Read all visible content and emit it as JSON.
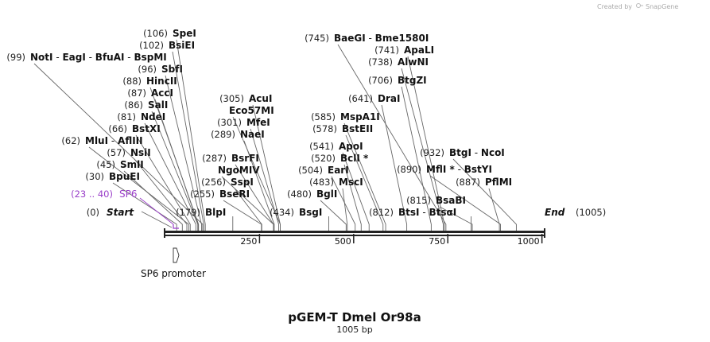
{
  "credit": {
    "text": "Created by",
    "brand": "SnapGene"
  },
  "title": "pGEM-T Dmel Or98a",
  "length_label": "1005 bp",
  "map": {
    "length": 1005,
    "start": {
      "pos": "(0)",
      "label": "Start"
    },
    "end": {
      "label": "End",
      "pos": "(1005)"
    },
    "ticks": [
      {
        "value": 250,
        "label": "250"
      },
      {
        "value": 500,
        "label": "500"
      },
      {
        "value": 750,
        "label": "750"
      },
      {
        "value": 1000,
        "label": "1000"
      }
    ]
  },
  "feature": {
    "range": "(23 .. 40)",
    "name": "SP6",
    "start": 23,
    "end": 40,
    "color": "#9a3fc9"
  },
  "promoter": {
    "name": "SP6 promoter",
    "start": 23,
    "end": 40
  },
  "colors": {
    "feature": "#9a3fc9",
    "text": "#111111",
    "line": "#666666"
  },
  "sites": [
    {
      "pos": "(106)",
      "names": [
        "SpeI"
      ],
      "bp": 106
    },
    {
      "pos": "(102)",
      "names": [
        "BsiEI"
      ],
      "bp": 102
    },
    {
      "pos": "(99)",
      "names": [
        "NotI",
        "EagI",
        "BfuAI",
        "BspMI"
      ],
      "bp": 99
    },
    {
      "pos": "(96)",
      "names": [
        "SbfI"
      ],
      "bp": 96
    },
    {
      "pos": "(88)",
      "names": [
        "HincII"
      ],
      "bp": 88
    },
    {
      "pos": "(87)",
      "names": [
        "AccI"
      ],
      "bp": 87
    },
    {
      "pos": "(86)",
      "names": [
        "SalI"
      ],
      "bp": 86
    },
    {
      "pos": "(81)",
      "names": [
        "NdeI"
      ],
      "bp": 81
    },
    {
      "pos": "(66)",
      "names": [
        "BstXI"
      ],
      "bp": 66
    },
    {
      "pos": "(62)",
      "names": [
        "MluI",
        "AflIII"
      ],
      "bp": 62
    },
    {
      "pos": "(57)",
      "names": [
        "NsiI"
      ],
      "bp": 57
    },
    {
      "pos": "(45)",
      "names": [
        "SmlI"
      ],
      "bp": 45
    },
    {
      "pos": "(30)",
      "names": [
        "BpuEI"
      ],
      "bp": 30
    },
    {
      "pos": "(305)",
      "names": [
        "AcuI"
      ],
      "bp": 305
    },
    {
      "pos": "",
      "names": [
        "Eco57MI"
      ],
      "bp": 305
    },
    {
      "pos": "(301)",
      "names": [
        "MfeI"
      ],
      "bp": 301
    },
    {
      "pos": "(289)",
      "names": [
        "NaeI"
      ],
      "bp": 289
    },
    {
      "pos": "(287)",
      "names": [
        "BsrFI"
      ],
      "bp": 287
    },
    {
      "pos": "",
      "names": [
        "NgoMIV"
      ],
      "bp": 287
    },
    {
      "pos": "(256)",
      "names": [
        "SspI"
      ],
      "bp": 256
    },
    {
      "pos": "(255)",
      "names": [
        "BseRI"
      ],
      "bp": 255
    },
    {
      "pos": "(179)",
      "names": [
        "BlpI"
      ],
      "bp": 179
    },
    {
      "pos": "(745)",
      "names": [
        "BaeGI",
        "Bme1580I"
      ],
      "bp": 745
    },
    {
      "pos": "(741)",
      "names": [
        "ApaLI"
      ],
      "bp": 741
    },
    {
      "pos": "(738)",
      "names": [
        "AlwNI"
      ],
      "bp": 738
    },
    {
      "pos": "(706)",
      "names": [
        "BtgZI"
      ],
      "bp": 706
    },
    {
      "pos": "(641)",
      "names": [
        "DraI"
      ],
      "bp": 641
    },
    {
      "pos": "(585)",
      "names": [
        "MspA1I"
      ],
      "bp": 585
    },
    {
      "pos": "(578)",
      "names": [
        "BstEII"
      ],
      "bp": 578
    },
    {
      "pos": "(541)",
      "names": [
        "ApoI"
      ],
      "bp": 541
    },
    {
      "pos": "(520)",
      "names": [
        "BclI *"
      ],
      "bp": 520
    },
    {
      "pos": "(504)",
      "names": [
        "EarI"
      ],
      "bp": 504
    },
    {
      "pos": "(483)",
      "names": [
        "MscI"
      ],
      "bp": 483
    },
    {
      "pos": "(480)",
      "names": [
        "BglI"
      ],
      "bp": 480
    },
    {
      "pos": "(434)",
      "names": [
        "BsgI"
      ],
      "bp": 434
    },
    {
      "pos": "(932)",
      "names": [
        "BtgI",
        "NcoI"
      ],
      "bp": 932
    },
    {
      "pos": "(890)",
      "names": [
        "MflI *",
        "BstYI"
      ],
      "bp": 890
    },
    {
      "pos": "(887)",
      "names": [
        "PflMI"
      ],
      "bp": 887
    },
    {
      "pos": "(815)",
      "names": [
        "BsaBI"
      ],
      "bp": 815
    },
    {
      "pos": "(812)",
      "names": [
        "BtsI",
        "BtsαI"
      ],
      "bp": 812
    }
  ]
}
